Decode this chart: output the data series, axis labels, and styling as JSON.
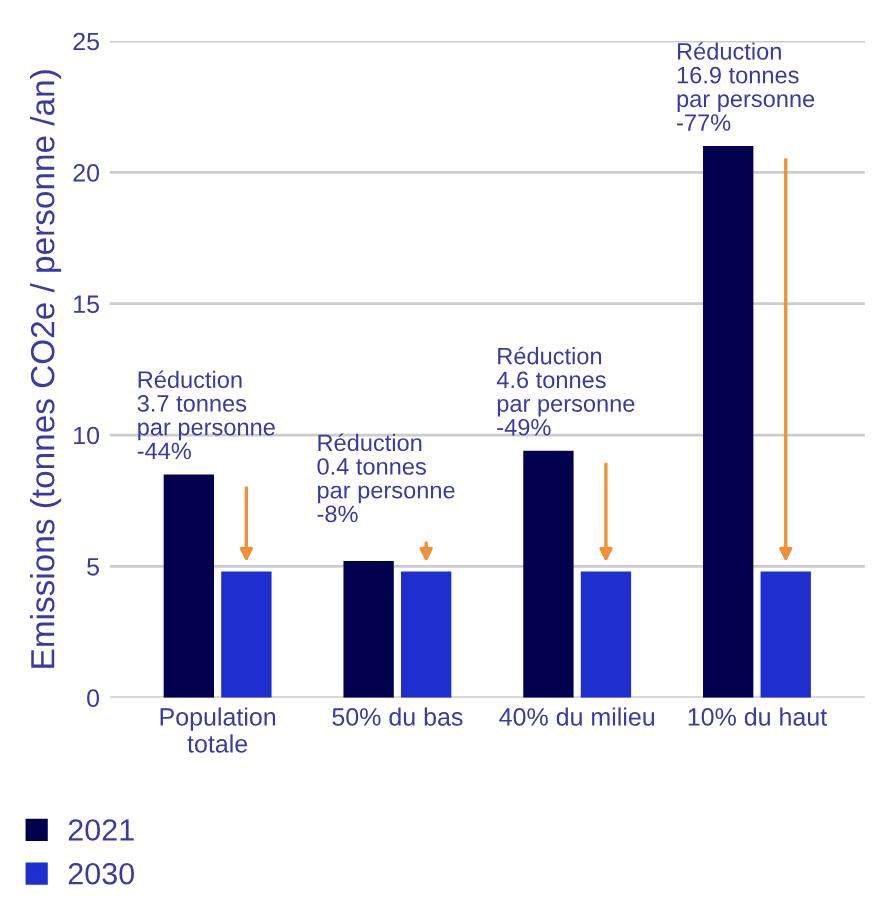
{
  "chart_data": {
    "type": "bar",
    "ylabel": "Emissions (tonnes CO2e / personne /an)",
    "categories": [
      "Population\ntotale",
      "50% du bas",
      "40% du milieu",
      "10% du haut"
    ],
    "series": [
      {
        "name": "2021",
        "color": "#03004f",
        "values": [
          8.5,
          5.2,
          9.4,
          21.0
        ]
      },
      {
        "name": "2030",
        "color": "#1f2ecf",
        "values": [
          4.8,
          4.8,
          4.8,
          4.8
        ]
      }
    ],
    "ylim": [
      0,
      25
    ],
    "yticks": [
      0,
      5,
      10,
      15,
      20,
      25
    ],
    "grid": "y",
    "legend": "bottom left",
    "annotations": [
      "Réduction\n3.7 tonnes\npar personne\n-44%",
      "Réduction\n0.4 tonnes\npar personne\n-8%",
      "Réduction\n4.6 tonnes\npar personne\n-49%",
      "Réduction\n16.9 tonnes\npar personne\n-77%"
    ]
  }
}
